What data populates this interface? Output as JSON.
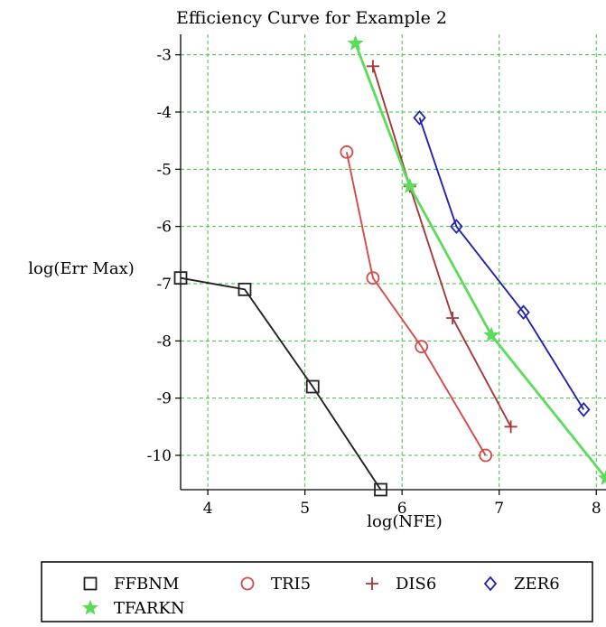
{
  "chart_data": {
    "type": "line",
    "title": "Efficiency Curve for Example 2",
    "xlabel": "log(NFE)",
    "ylabel": "log(Err Max)",
    "xlim": [
      3.72,
      8.1
    ],
    "ylim": [
      -10.6,
      -2.8
    ],
    "x_ticks": [
      4,
      5,
      6,
      7,
      8
    ],
    "y_ticks": [
      -3,
      -4,
      -5,
      -6,
      -7,
      -8,
      -9,
      -10
    ],
    "x_tick_labels": [
      "4",
      "5",
      "6",
      "7",
      "8"
    ],
    "y_tick_labels": [
      "-3",
      "-4",
      "-5",
      "-6",
      "-7",
      "-8",
      "-9",
      "-10"
    ],
    "grid": true,
    "legend_position": "bottom",
    "series": [
      {
        "name": "FFBNM",
        "color": "#222222",
        "marker": "square",
        "x": [
          3.72,
          4.38,
          5.08,
          5.78
        ],
        "y": [
          -6.9,
          -7.1,
          -8.8,
          -10.6
        ]
      },
      {
        "name": "TRI5",
        "color": "#d84848",
        "marker": "circle",
        "x": [
          5.43,
          5.7,
          6.2,
          6.86
        ],
        "y": [
          -4.7,
          -6.9,
          -8.1,
          -10.0
        ]
      },
      {
        "name": "DIS6",
        "color": "#a83838",
        "marker": "plus",
        "x": [
          5.7,
          6.08,
          6.52,
          7.12
        ],
        "y": [
          -3.2,
          -5.3,
          -7.6,
          -9.5
        ]
      },
      {
        "name": "ZER6",
        "color": "#2222b0",
        "marker": "diamond",
        "x": [
          6.18,
          6.56,
          7.25,
          7.87
        ],
        "y": [
          -4.1,
          -6.0,
          -7.5,
          -9.2
        ]
      },
      {
        "name": "TFARKN",
        "color": "#5adc5a",
        "marker": "star",
        "x": [
          5.52,
          6.08,
          6.92,
          8.1
        ],
        "y": [
          -2.8,
          -5.3,
          -7.9,
          -10.4
        ]
      }
    ]
  }
}
